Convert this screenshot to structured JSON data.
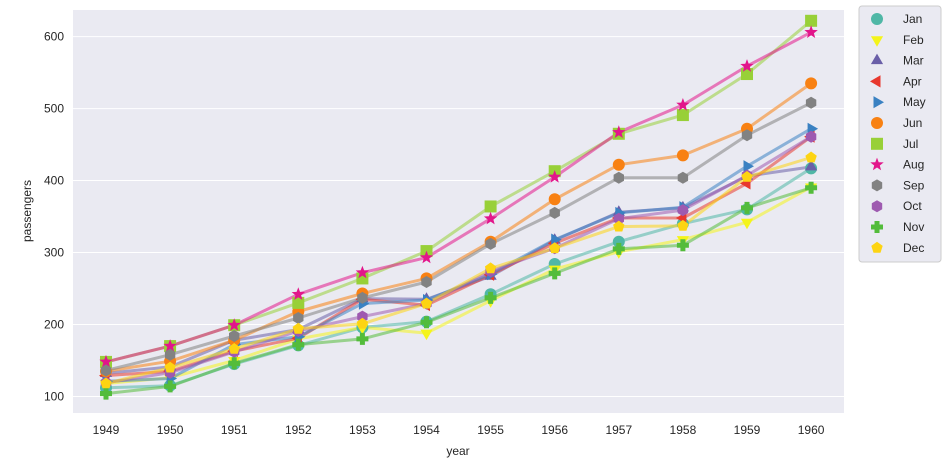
{
  "chart_data": {
    "type": "line",
    "title": "",
    "xlabel": "year",
    "ylabel": "passengers",
    "categories": [
      "1949",
      "1950",
      "1951",
      "1952",
      "1953",
      "1954",
      "1955",
      "1956",
      "1957",
      "1958",
      "1959",
      "1960"
    ],
    "yticks": [
      100,
      200,
      300,
      400,
      500,
      600
    ],
    "ylim": [
      77,
      637
    ],
    "grid": true,
    "legend_position": "outside-right",
    "series": [
      {
        "name": "Jan",
        "color": "#4fb7a6",
        "marker": "circle",
        "values": [
          112,
          115,
          145,
          171,
          196,
          204,
          242,
          284,
          315,
          340,
          360,
          417
        ]
      },
      {
        "name": "Feb",
        "color": "#f4f41a",
        "marker": "triangle-down",
        "values": [
          118,
          126,
          150,
          180,
          196,
          188,
          233,
          277,
          301,
          318,
          342,
          391
        ]
      },
      {
        "name": "Mar",
        "color": "#6a5fa8",
        "marker": "triangle-up",
        "values": [
          132,
          141,
          178,
          193,
          236,
          235,
          267,
          317,
          356,
          362,
          406,
          419
        ]
      },
      {
        "name": "Apr",
        "color": "#e8382e",
        "marker": "triangle-left",
        "values": [
          129,
          135,
          163,
          181,
          235,
          227,
          269,
          313,
          348,
          348,
          396,
          461
        ]
      },
      {
        "name": "May",
        "color": "#3a81c2",
        "marker": "triangle-right",
        "values": [
          121,
          125,
          172,
          183,
          229,
          234,
          270,
          318,
          355,
          363,
          420,
          472
        ]
      },
      {
        "name": "Jun",
        "color": "#f88113",
        "marker": "circle",
        "values": [
          135,
          149,
          178,
          218,
          243,
          264,
          315,
          374,
          422,
          435,
          472,
          535
        ]
      },
      {
        "name": "Jul",
        "color": "#98d038",
        "marker": "square",
        "values": [
          148,
          170,
          199,
          230,
          264,
          302,
          364,
          413,
          465,
          491,
          548,
          622
        ]
      },
      {
        "name": "Aug",
        "color": "#e2168b",
        "marker": "star",
        "values": [
          148,
          170,
          199,
          242,
          272,
          293,
          347,
          405,
          467,
          505,
          559,
          606
        ]
      },
      {
        "name": "Sep",
        "color": "#828282",
        "marker": "hexagon",
        "values": [
          136,
          158,
          184,
          209,
          237,
          259,
          312,
          355,
          404,
          404,
          463,
          508
        ]
      },
      {
        "name": "Oct",
        "color": "#9e5ab0",
        "marker": "hexagon",
        "values": [
          119,
          133,
          162,
          191,
          211,
          229,
          274,
          306,
          347,
          359,
          407,
          461
        ]
      },
      {
        "name": "Nov",
        "color": "#53bc3b",
        "marker": "plus",
        "values": [
          104,
          114,
          146,
          172,
          180,
          203,
          237,
          271,
          305,
          310,
          362,
          390
        ]
      },
      {
        "name": "Dec",
        "color": "#fdd413",
        "marker": "pentagon",
        "values": [
          118,
          140,
          166,
          194,
          201,
          229,
          278,
          306,
          336,
          337,
          405,
          432
        ]
      }
    ]
  }
}
